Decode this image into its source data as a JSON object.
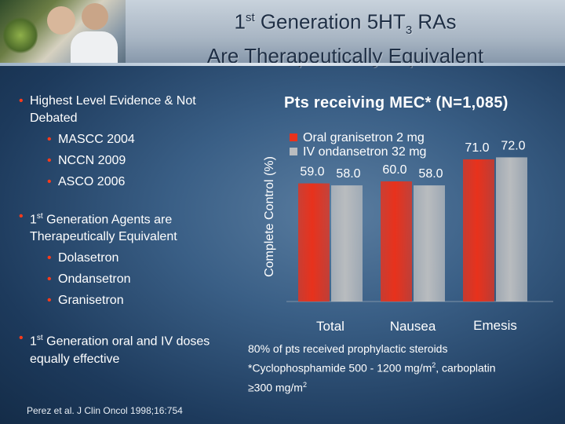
{
  "header": {
    "title_line1_pre": "1",
    "title_line1_sup": "st",
    "title_line1_mid": " Generation 5HT",
    "title_line1_sub": "3",
    "title_line1_post": " RAs",
    "title_line2": "Are Therapeutically Equivalent"
  },
  "left": {
    "item1": "Highest Level Evidence & Not Debated",
    "item1_subs": [
      "MASCC 2004",
      "NCCN 2009",
      "ASCO 2006"
    ],
    "item2_pre": "1",
    "item2_sup": "st",
    "item2_post": " Generation Agents are Therapeutically Equivalent",
    "item2_subs": [
      "Dolasetron",
      "Ondansetron",
      "Granisetron"
    ],
    "item3_pre": "1",
    "item3_sup": "st",
    "item3_post": " Generation oral and IV doses equally effective",
    "citation": "Perez et al. J Clin Oncol 1998;16:754"
  },
  "chart_title": "Pts receiving MEC* (N=1,085)",
  "footnote": {
    "line1": "80% of pts received prophylactic steroids",
    "line2_pre": "*Cyclophosphamide 500 - 1200 mg/m",
    "line2_sup": "2",
    "line2_post": ", carboplatin",
    "line3_pre": "≥300 mg/m",
    "line3_sup": "2"
  },
  "colors": {
    "series1": "#e8321c",
    "series2": "#b9bcbf"
  },
  "chart_data": {
    "type": "bar",
    "categories": [
      "Total",
      "Nausea",
      "Emesis"
    ],
    "series": [
      {
        "name": "Oral granisetron 2 mg",
        "values": [
          59.0,
          60.0,
          71.0
        ],
        "labels": [
          "59.0",
          "60.0",
          "71.0"
        ]
      },
      {
        "name": "IV ondansetron 32 mg",
        "values": [
          58.0,
          58.0,
          72.0
        ],
        "labels": [
          "58.0",
          "58.0",
          "72.0"
        ]
      }
    ],
    "ylabel": "Complete Control (%)",
    "ylim": [
      0,
      80
    ]
  }
}
